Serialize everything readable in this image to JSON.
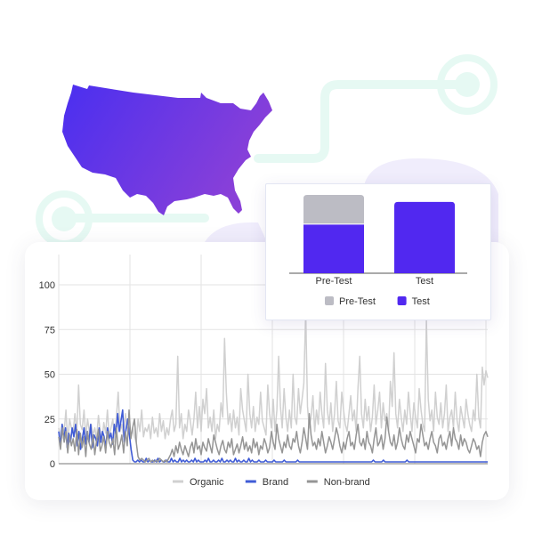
{
  "colors": {
    "organic": "#d0d0d0",
    "brand": "#3f5bd6",
    "nonbrand": "#959595",
    "pretest": "#bcbcc4",
    "test": "#5128f0",
    "map_start": "#4a2ff0",
    "map_end": "#8a40d8",
    "circuit": "#e6f9f3"
  },
  "icons": {
    "map": "usa-map-icon"
  },
  "chart_data": [
    {
      "type": "line",
      "title": "",
      "ylim": [
        0,
        100
      ],
      "yticks": [
        0,
        25,
        50,
        75,
        100
      ],
      "grid": true,
      "legend_position": "bottom",
      "series": [
        {
          "name": "Organic",
          "values": [
            20,
            15,
            22,
            18,
            30,
            12,
            25,
            20,
            18,
            28,
            17,
            44,
            22,
            19,
            30,
            15,
            25,
            18,
            22,
            16,
            20,
            14,
            27,
            18,
            12,
            23,
            17,
            30,
            15,
            20,
            25,
            12,
            26,
            40,
            18,
            22,
            15,
            28,
            20,
            25,
            14,
            20,
            15,
            12,
            25,
            18,
            30,
            15,
            20,
            18,
            22,
            14,
            26,
            17,
            20,
            15,
            28,
            18,
            24,
            14,
            20,
            16,
            25,
            30,
            18,
            22,
            60,
            20,
            28,
            14,
            22,
            18,
            30,
            24,
            16,
            25,
            40,
            20,
            32,
            18,
            36,
            28,
            42,
            20,
            26,
            18,
            30,
            14,
            22,
            18,
            34,
            26,
            70,
            40,
            22,
            28,
            18,
            30,
            20,
            26,
            16,
            42,
            30,
            24,
            18,
            50,
            28,
            20,
            32,
            18,
            26,
            22,
            40,
            24,
            20,
            16,
            44,
            28,
            20,
            36,
            18,
            30,
            60,
            32,
            20,
            42,
            26,
            18,
            30,
            20,
            50,
            26,
            22,
            42,
            28,
            36,
            45,
            85,
            32,
            20,
            26,
            38,
            18,
            30,
            22,
            40,
            28,
            20,
            56,
            30,
            22,
            34,
            18,
            28,
            46,
            24,
            20,
            40,
            30,
            22,
            18,
            28,
            38,
            24,
            30,
            18,
            42,
            60,
            28,
            20,
            36,
            24,
            32,
            18,
            26,
            44,
            22,
            30,
            40,
            20,
            34,
            24,
            28,
            18,
            46,
            32,
            62,
            28,
            20,
            36,
            26,
            18,
            30,
            22,
            40,
            28,
            18,
            34,
            26,
            20,
            42,
            30,
            22,
            18,
            80,
            36,
            24,
            30,
            18,
            40,
            26,
            22,
            34,
            20,
            28,
            44,
            18,
            26,
            30,
            20,
            40,
            24,
            18,
            32,
            26,
            20,
            36,
            28,
            22,
            18,
            30,
            24,
            50,
            26,
            20,
            54,
            44,
            52,
            48
          ]
        },
        {
          "name": "Brand",
          "values": [
            18,
            10,
            22,
            14,
            20,
            9,
            17,
            12,
            20,
            15,
            22,
            10,
            18,
            8,
            14,
            20,
            11,
            18,
            12,
            22,
            9,
            16,
            14,
            10,
            20,
            12,
            18,
            15,
            9,
            20,
            14,
            17,
            11,
            22,
            16,
            28,
            18,
            24,
            30,
            12,
            19,
            25,
            16,
            8,
            2,
            1,
            1,
            2,
            1,
            2,
            1,
            1,
            3,
            1,
            2,
            1,
            1,
            2,
            1,
            3,
            1,
            2,
            1,
            1,
            2,
            1,
            1,
            3,
            1,
            2,
            1,
            1,
            3,
            1,
            2,
            1,
            2,
            1,
            1,
            2,
            1,
            3,
            1,
            2,
            1,
            1,
            1,
            2,
            1,
            3,
            1,
            1,
            2,
            1,
            1,
            2,
            1,
            3,
            1,
            1,
            2,
            1,
            2,
            1,
            1,
            3,
            1,
            2,
            1,
            1,
            2,
            1,
            1,
            3,
            1,
            2,
            1,
            1,
            1,
            2,
            1,
            1,
            1,
            2,
            1,
            1,
            1,
            1,
            2,
            1,
            1,
            1,
            1,
            1,
            2,
            1,
            1,
            1,
            1,
            1,
            1,
            1,
            2,
            1,
            1,
            1,
            1,
            1,
            1,
            1,
            1,
            1,
            1,
            1,
            1,
            1,
            1,
            1,
            1,
            1,
            1,
            1,
            1,
            1,
            1,
            1,
            1,
            1,
            1,
            1,
            1,
            1,
            1,
            1,
            1,
            1,
            1,
            1,
            1,
            1,
            1,
            1,
            1,
            1,
            1,
            1,
            1,
            2,
            1,
            1,
            1,
            1,
            1,
            2,
            1,
            1,
            1,
            1,
            1,
            1,
            1,
            1,
            1,
            1,
            1,
            1,
            1,
            2,
            1,
            1,
            1,
            1,
            1,
            1,
            1,
            1,
            1,
            1,
            1,
            1,
            1,
            1,
            1,
            1,
            1,
            1,
            1,
            1,
            1,
            1,
            1,
            1,
            1,
            1,
            1,
            1,
            1,
            1,
            1,
            1,
            1,
            1,
            1,
            1,
            1,
            1,
            1,
            1,
            1,
            1,
            1,
            1,
            1,
            1,
            1,
            1
          ]
        },
        {
          "name": "Non-brand",
          "values": [
            15,
            8,
            20,
            12,
            18,
            6,
            16,
            10,
            14,
            7,
            19,
            5,
            17,
            9,
            15,
            4,
            18,
            11,
            8,
            16,
            5,
            13,
            19,
            7,
            10,
            15,
            6,
            18,
            12,
            9,
            14,
            5,
            20,
            8,
            11,
            16,
            6,
            18,
            10,
            30,
            14,
            20,
            25,
            12,
            4,
            2,
            3,
            2,
            1,
            2,
            3,
            1,
            2,
            1,
            2,
            1,
            3,
            2,
            1,
            2,
            1,
            3,
            5,
            8,
            4,
            10,
            6,
            12,
            8,
            5,
            10,
            7,
            4,
            9,
            12,
            6,
            14,
            8,
            10,
            5,
            12,
            9,
            7,
            14,
            10,
            6,
            16,
            12,
            8,
            5,
            10,
            13,
            8,
            6,
            12,
            9,
            14,
            5,
            8,
            11,
            6,
            10,
            15,
            8,
            12,
            7,
            10,
            6,
            14,
            9,
            12,
            5,
            10,
            8,
            14,
            11,
            6,
            9,
            18,
            12,
            8,
            22,
            14,
            10,
            6,
            12,
            9,
            16,
            10,
            8,
            14,
            12,
            18,
            10,
            6,
            12,
            20,
            14,
            8,
            28,
            16,
            10,
            12,
            8,
            14,
            10,
            18,
            12,
            6,
            10,
            15,
            12,
            8,
            14,
            20,
            16,
            10,
            6,
            12,
            8,
            14,
            18,
            10,
            12,
            8,
            16,
            22,
            12,
            10,
            14,
            8,
            18,
            12,
            10,
            6,
            14,
            20,
            10,
            12,
            16,
            8,
            14,
            26,
            18,
            12,
            10,
            16,
            8,
            12,
            20,
            14,
            10,
            8,
            16,
            12,
            18,
            14,
            10,
            6,
            14,
            12,
            22,
            16,
            10,
            12,
            8,
            14,
            18,
            12,
            10,
            6,
            14,
            16,
            10,
            12,
            8,
            14,
            18,
            10,
            20,
            14,
            12,
            8,
            16,
            10,
            14,
            12,
            8,
            6,
            10,
            14,
            12,
            8,
            10,
            4,
            12,
            16,
            18,
            15
          ]
        }
      ]
    },
    {
      "type": "bar",
      "title": "",
      "categories": [
        "Pre-Test",
        "Test"
      ],
      "legend_position": "bottom",
      "series": [
        {
          "name": "Pre-Test",
          "values": [
            0.25,
            0
          ]
        },
        {
          "name": "Test",
          "values": [
            0.42,
            0.61
          ]
        }
      ]
    }
  ]
}
